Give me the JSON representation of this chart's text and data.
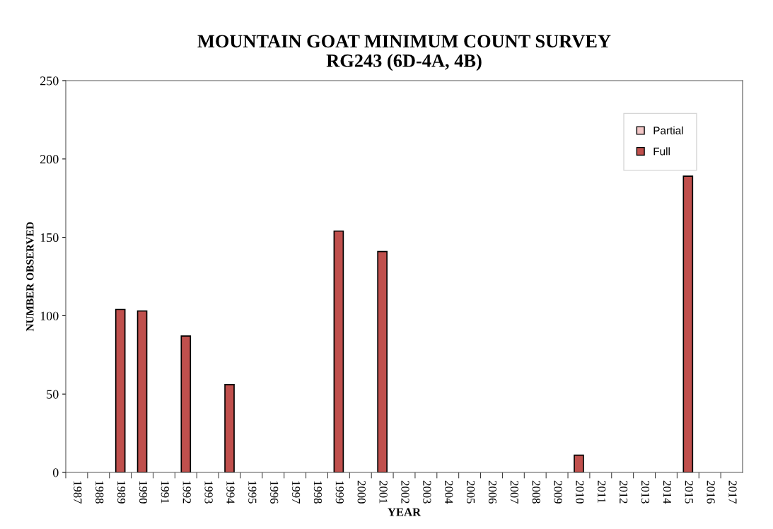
{
  "chart_data": {
    "type": "bar",
    "title": "MOUNTAIN GOAT MINIMUM COUNT SURVEY\nRG243 (6D-4A, 4B)",
    "xlabel": "YEAR",
    "ylabel": "NUMBER OBSERVED",
    "categories": [
      "1987",
      "1988",
      "1989",
      "1990",
      "1991",
      "1992",
      "1993",
      "1994",
      "1995",
      "1996",
      "1997",
      "1998",
      "1999",
      "2000",
      "2001",
      "2002",
      "2003",
      "2004",
      "2005",
      "2006",
      "2007",
      "2008",
      "2009",
      "2010",
      "2011",
      "2012",
      "2013",
      "2014",
      "2015",
      "2016",
      "2017"
    ],
    "series": [
      {
        "name": "Partial",
        "color": "#f2c6c6",
        "values": [
          null,
          null,
          null,
          null,
          null,
          null,
          null,
          null,
          null,
          null,
          null,
          null,
          null,
          null,
          null,
          null,
          null,
          null,
          null,
          null,
          null,
          null,
          null,
          null,
          null,
          null,
          null,
          null,
          null,
          null,
          null
        ]
      },
      {
        "name": "Full",
        "color": "#c0504d",
        "values": [
          null,
          null,
          104,
          103,
          null,
          87,
          null,
          56,
          null,
          null,
          null,
          null,
          154,
          null,
          141,
          null,
          null,
          null,
          null,
          null,
          null,
          null,
          null,
          11,
          null,
          null,
          null,
          null,
          189,
          null,
          null
        ]
      }
    ],
    "ylim": [
      0,
      250
    ],
    "yticks": [
      0,
      50,
      100,
      150,
      200,
      250
    ],
    "grid": false,
    "legend": "top right"
  }
}
